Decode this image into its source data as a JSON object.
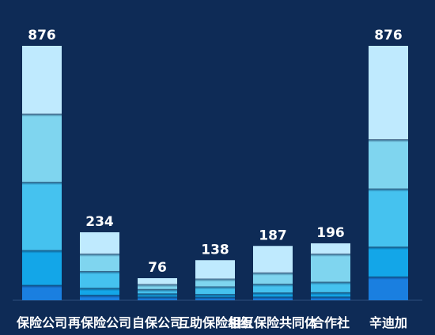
{
  "chart_data": {
    "type": "bar",
    "stacked": true,
    "title": "",
    "xlabel": "",
    "ylabel": "",
    "ylim": [
      0,
      876
    ],
    "grid": false,
    "legend": "none",
    "categories": [
      "保险公司",
      "再保险公司",
      "自保公司",
      "互助保险组织",
      "相互保险共同体",
      "合作社",
      "辛迪加"
    ],
    "totals": [
      876,
      234,
      76,
      138,
      187,
      196,
      876
    ],
    "totals_labels": [
      "876",
      "234",
      "76",
      "138",
      "187",
      "196",
      "876"
    ],
    "series": [
      {
        "color": "#1a7fe0",
        "values": [
          50,
          16,
          10,
          9,
          10,
          10,
          79
        ]
      },
      {
        "color": "#13a6e8",
        "values": [
          120,
          24,
          11,
          10,
          14,
          15,
          103
        ]
      },
      {
        "color": "#45c2ef",
        "values": [
          235,
          58,
          15,
          26,
          30,
          36,
          200
        ]
      },
      {
        "color": "#7fd5ef",
        "values": [
          235,
          60,
          17,
          27,
          39,
          97,
          170
        ]
      },
      {
        "color": "#bfeafe",
        "values": [
          236,
          76,
          23,
          66,
          94,
          38,
          324
        ]
      }
    ],
    "colors": {
      "background": "#0e2b56",
      "axis": "#2f4f7f",
      "label": "#ffffff"
    }
  }
}
